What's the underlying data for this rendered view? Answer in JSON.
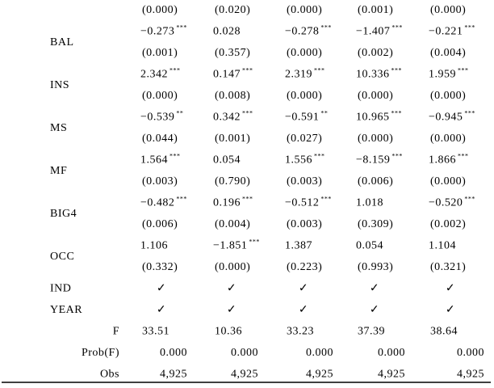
{
  "table": {
    "top_pvalues": [
      "(0.000)",
      "(0.020)",
      "(0.000)",
      "(0.001)",
      "(0.000)"
    ],
    "variables": [
      {
        "name": "BAL",
        "coefficients": [
          {
            "text": "−0.273",
            "stars": "***"
          },
          {
            "text": "0.028"
          },
          {
            "text": "−0.278",
            "stars": "***"
          },
          {
            "text": "−1.407",
            "stars": "***"
          },
          {
            "text": "−0.221",
            "stars": "***"
          }
        ],
        "pvalues": [
          "(0.001)",
          "(0.357)",
          "(0.000)",
          "(0.002)",
          "(0.004)"
        ]
      },
      {
        "name": "INS",
        "coefficients": [
          {
            "text": "2.342",
            "stars": "***"
          },
          {
            "text": "0.147",
            "stars": "***"
          },
          {
            "text": "2.319",
            "stars": "***"
          },
          {
            "text": "10.336",
            "stars": "***"
          },
          {
            "text": "1.959",
            "stars": "***"
          }
        ],
        "pvalues": [
          "(0.000)",
          "(0.008)",
          "(0.000)",
          "(0.000)",
          "(0.000)"
        ]
      },
      {
        "name": "MS",
        "coefficients": [
          {
            "text": "−0.539",
            "stars": "**"
          },
          {
            "text": "0.342",
            "stars": "***"
          },
          {
            "text": "−0.591",
            "stars": "**"
          },
          {
            "text": "10.965",
            "stars": "***"
          },
          {
            "text": "−0.945",
            "stars": "***"
          }
        ],
        "pvalues": [
          "(0.044)",
          "(0.001)",
          "(0.027)",
          "(0.000)",
          "(0.000)"
        ]
      },
      {
        "name": "MF",
        "coefficients": [
          {
            "text": "1.564",
            "stars": "***"
          },
          {
            "text": "0.054"
          },
          {
            "text": "1.556",
            "stars": "***"
          },
          {
            "text": "−8.159",
            "stars": "***"
          },
          {
            "text": "1.866",
            "stars": "***"
          }
        ],
        "pvalues": [
          "(0.003)",
          "(0.790)",
          "(0.003)",
          "(0.006)",
          "(0.000)"
        ]
      },
      {
        "name": "BIG4",
        "coefficients": [
          {
            "text": "−0.482",
            "stars": "***"
          },
          {
            "text": "0.196",
            "stars": "***"
          },
          {
            "text": "−0.512",
            "stars": "***"
          },
          {
            "text": "1.018"
          },
          {
            "text": "−0.520",
            "stars": "***"
          }
        ],
        "pvalues": [
          "(0.006)",
          "(0.004)",
          "(0.003)",
          "(0.309)",
          "(0.002)"
        ]
      },
      {
        "name": "OCC",
        "coefficients": [
          {
            "text": "1.106"
          },
          {
            "text": "−1.851",
            "stars": "***"
          },
          {
            "text": "1.387"
          },
          {
            "text": "0.054"
          },
          {
            "text": "1.104"
          }
        ],
        "pvalues": [
          "(0.332)",
          "(0.000)",
          "(0.223)",
          "(0.993)",
          "(0.321)"
        ]
      }
    ],
    "controls": [
      {
        "name": "IND",
        "marks": [
          "✓",
          "✓",
          "✓",
          "✓",
          "✓"
        ]
      },
      {
        "name": "YEAR",
        "marks": [
          "✓",
          "✓",
          "✓",
          "✓",
          "✓"
        ]
      }
    ],
    "stats": [
      {
        "name": "F",
        "values": [
          "33.51",
          "10.36",
          "33.23",
          "37.39",
          "38.64"
        ]
      },
      {
        "name": "Prob(F)",
        "values": [
          "0.000",
          "0.000",
          "0.000",
          "0.000",
          "0.000"
        ]
      },
      {
        "name": "Obs",
        "values": [
          "4,925",
          "4,925",
          "4,925",
          "4,925",
          "4,925"
        ]
      }
    ]
  }
}
